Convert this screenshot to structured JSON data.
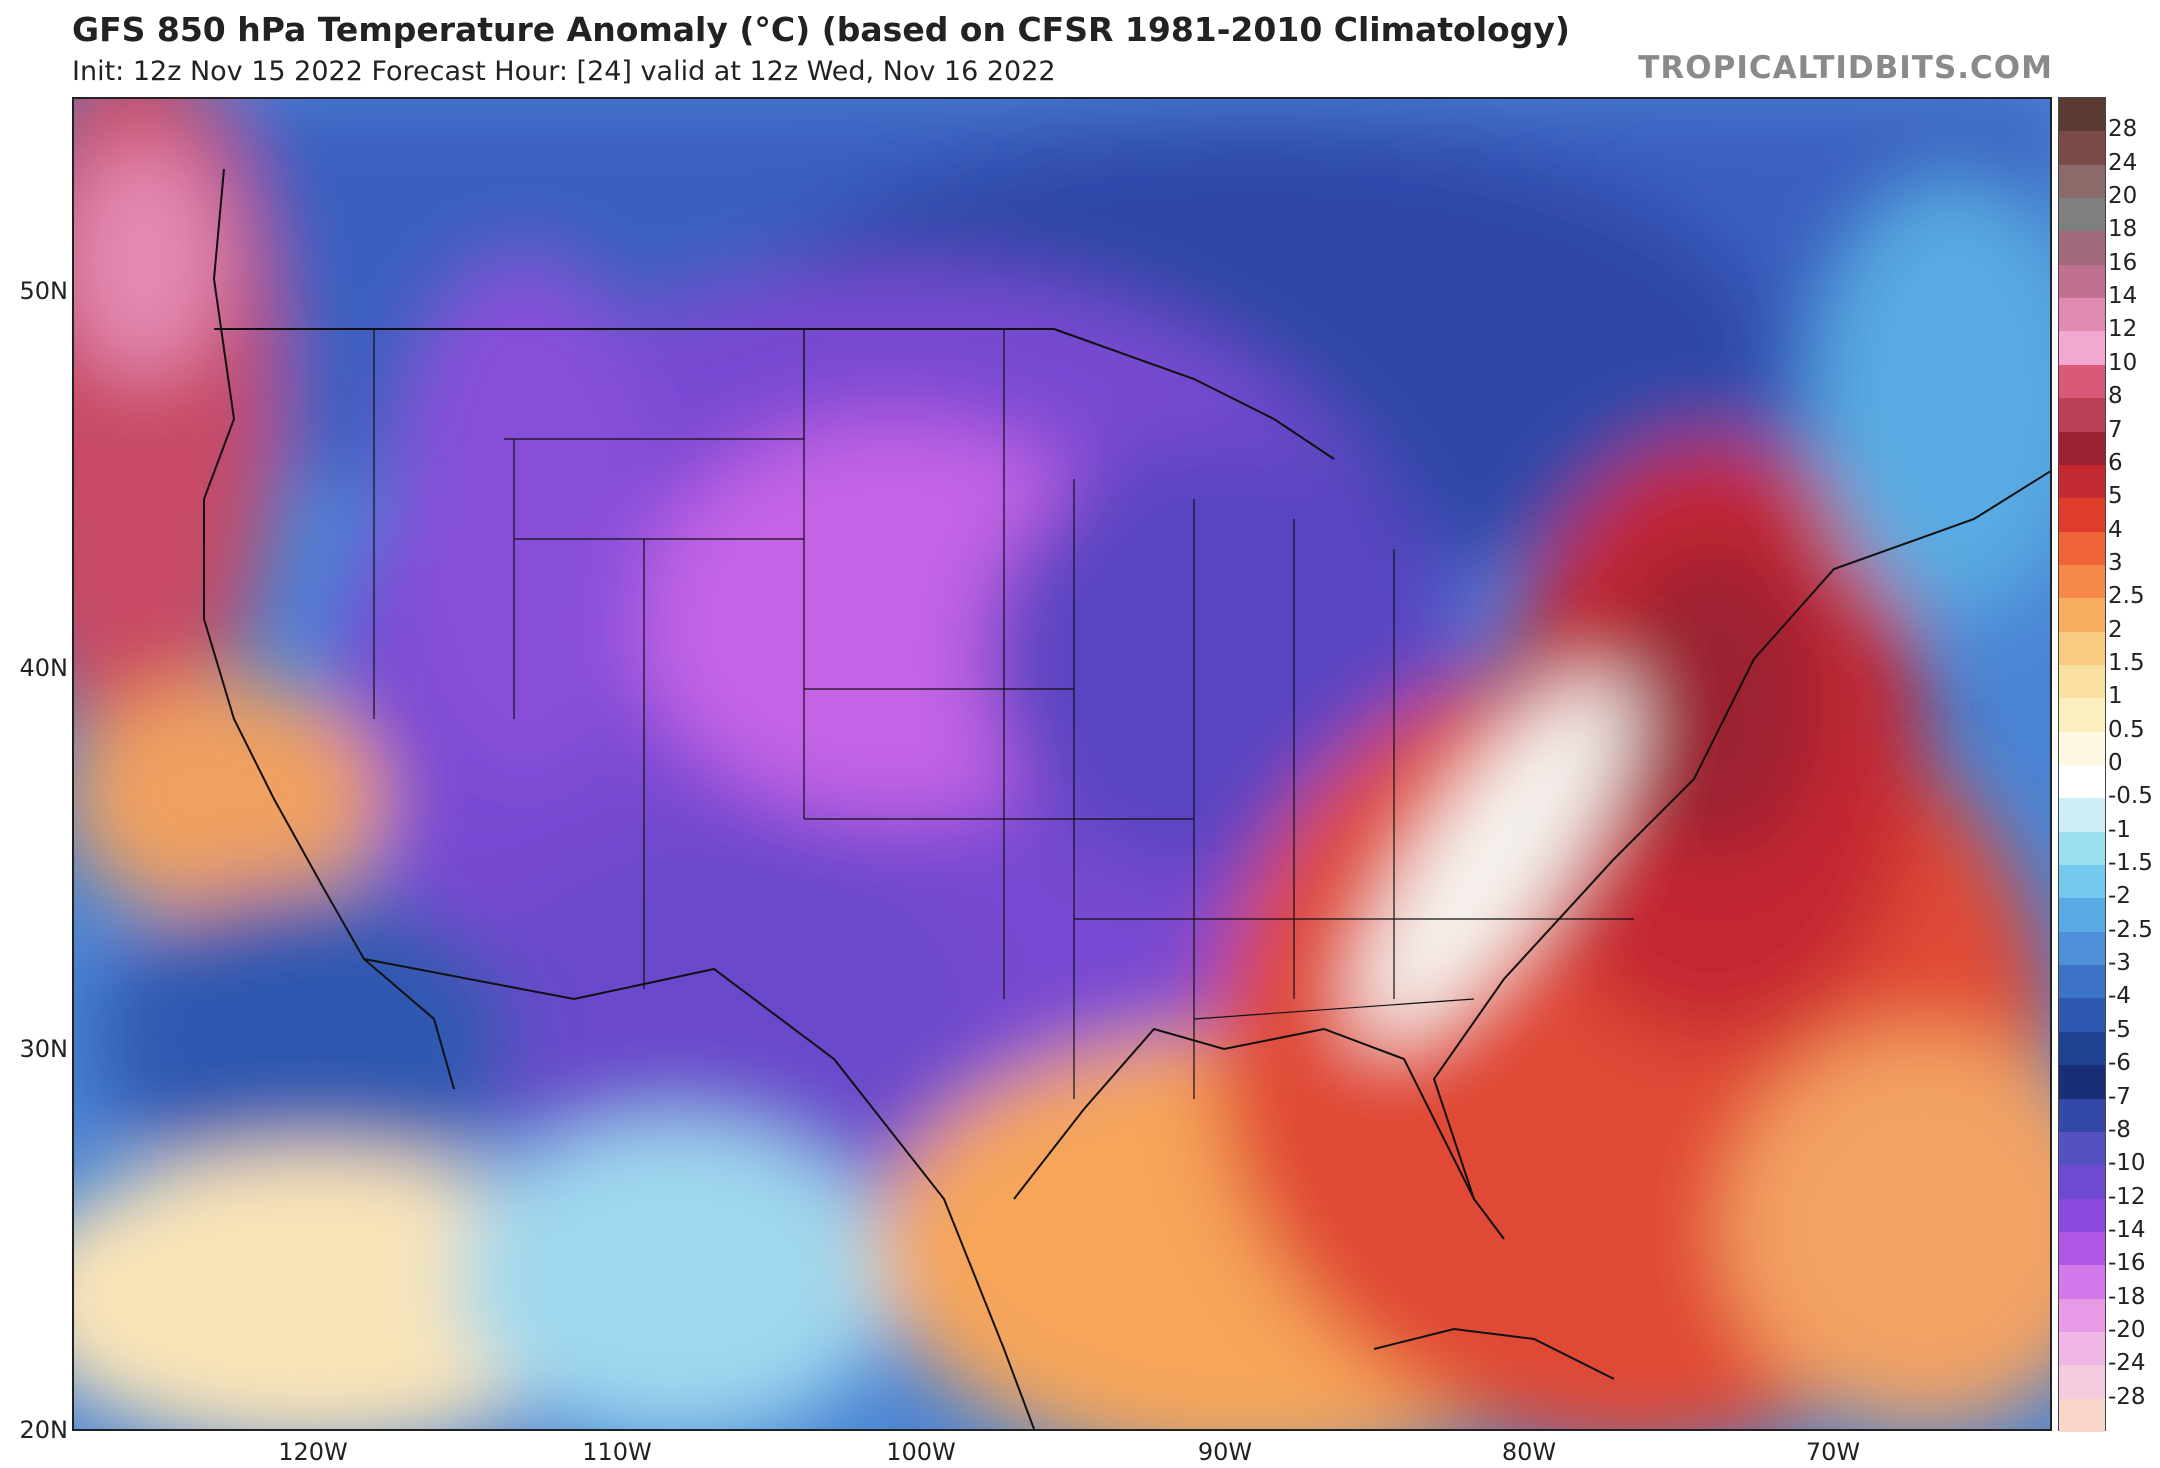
{
  "header": {
    "title": "GFS 850 hPa Temperature Anomaly (°C) (based on CFSR 1981-2010 Climatology)",
    "subtitle": "Init: 12z Nov 15 2022   Forecast Hour: [24]   valid at 12z Wed, Nov 16 2022",
    "watermark": "TROPICALTIDBITS.COM"
  },
  "map": {
    "lon_range": [
      -128,
      -63
    ],
    "lat_range": [
      20,
      55
    ],
    "lat_labels": [
      "50N",
      "40N",
      "30N",
      "20N"
    ],
    "lon_labels": [
      "120W",
      "110W",
      "100W",
      "90W",
      "80W",
      "70W"
    ]
  },
  "colorbar": {
    "levels": [
      "28",
      "24",
      "20",
      "18",
      "16",
      "14",
      "12",
      "10",
      "8",
      "7",
      "6",
      "5",
      "4",
      "3",
      "2.5",
      "2",
      "1.5",
      "1",
      "0.5",
      "0",
      "-0.5",
      "-1",
      "-1.5",
      "-2",
      "-2.5",
      "-3",
      "-4",
      "-5",
      "-6",
      "-7",
      "-8",
      "-10",
      "-12",
      "-14",
      "-16",
      "-18",
      "-20",
      "-24",
      "-28"
    ],
    "colors": [
      "#5a3b34",
      "#7a4a48",
      "#8c6a6a",
      "#7f7f7f",
      "#a06a7a",
      "#c07090",
      "#e08ab0",
      "#f2a8d0",
      "#d85a78",
      "#bb4055",
      "#9c2033",
      "#c42830",
      "#e03c2c",
      "#f0643a",
      "#f6894a",
      "#f6ad60",
      "#f8cb80",
      "#fae0a0",
      "#fbefc0",
      "#fdf8e2",
      "#ffffff",
      "#ceeef6",
      "#9be0f0",
      "#74c9ec",
      "#58abe2",
      "#4d90d8",
      "#3c73c6",
      "#2f58b0",
      "#204293",
      "#1a2e78",
      "#3448a8",
      "#5352c0",
      "#6e4ad0",
      "#8a48dc",
      "#b058e6",
      "#d278ea",
      "#e89ae6",
      "#f0b6e6",
      "#f5cade",
      "#f8d6c8"
    ]
  }
}
